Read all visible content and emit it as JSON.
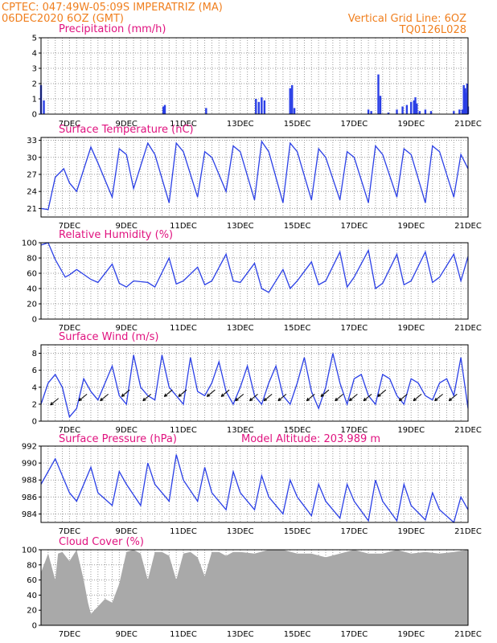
{
  "header": {
    "left_line1": "CPTEC:    047:49W-05:09S   IMPERATRIZ (MA)",
    "left_line2": "06DEC2020 6OZ (GMT)",
    "right_line1": "Vertical Grid Line: 6OZ",
    "right_line2": "TQ0126L028"
  },
  "colors": {
    "header": "#f07f1e",
    "title": "#e0127f",
    "series": "#2a3fe6",
    "cloud": "#a9a9a9"
  },
  "chart_data": [
    {
      "type": "bar",
      "title": "Precipitation (mm/h)",
      "ylim": [
        0,
        5
      ],
      "yticks": [
        "0",
        "1",
        "2",
        "3",
        "4",
        "5"
      ],
      "xticks": [
        "7DEC",
        "9DEC",
        "11DEC",
        "13DEC",
        "15DEC",
        "17DEC",
        "19DEC",
        "21DEC"
      ],
      "grid": true,
      "values": [
        [
          0.0,
          1.9
        ],
        [
          0.1,
          0.9
        ],
        [
          4.3,
          0.5
        ],
        [
          4.35,
          0.6
        ],
        [
          5.8,
          0.4
        ],
        [
          7.55,
          1.0
        ],
        [
          7.65,
          0.8
        ],
        [
          7.75,
          1.1
        ],
        [
          7.85,
          0.9
        ],
        [
          8.75,
          1.7
        ],
        [
          8.82,
          1.9
        ],
        [
          8.9,
          0.4
        ],
        [
          11.5,
          0.3
        ],
        [
          11.6,
          0.2
        ],
        [
          11.85,
          2.6
        ],
        [
          11.92,
          1.2
        ],
        [
          12.2,
          0.1
        ],
        [
          12.5,
          0.3
        ],
        [
          12.7,
          0.5
        ],
        [
          12.85,
          0.6
        ],
        [
          13.0,
          0.8
        ],
        [
          13.1,
          0.9
        ],
        [
          13.15,
          1.1
        ],
        [
          13.2,
          0.7
        ],
        [
          13.3,
          0.2
        ],
        [
          13.5,
          0.3
        ],
        [
          13.7,
          0.2
        ],
        [
          14.5,
          0.2
        ],
        [
          14.7,
          0.3
        ],
        [
          14.8,
          0.3
        ],
        [
          14.85,
          1.9
        ],
        [
          14.9,
          1.7
        ],
        [
          14.93,
          1.4
        ],
        [
          14.97,
          2.0
        ],
        [
          15.0,
          0.5
        ]
      ]
    },
    {
      "type": "line",
      "title": "Surface Temperature (nC)",
      "ylim": [
        19.5,
        33.5
      ],
      "yticks": [
        "21",
        "24",
        "27",
        "30",
        "33"
      ],
      "xticks": [
        "7DEC",
        "9DEC",
        "11DEC",
        "13DEC",
        "15DEC",
        "17DEC",
        "19DEC",
        "21DEC"
      ],
      "grid": true,
      "values": [
        [
          0.0,
          21.0
        ],
        [
          0.25,
          20.8
        ],
        [
          0.5,
          26.5
        ],
        [
          0.8,
          28.0
        ],
        [
          1.0,
          25.5
        ],
        [
          1.25,
          24.0
        ],
        [
          1.75,
          31.8
        ],
        [
          2.0,
          29.0
        ],
        [
          2.5,
          23.0
        ],
        [
          2.75,
          31.5
        ],
        [
          3.0,
          30.5
        ],
        [
          3.25,
          24.5
        ],
        [
          3.75,
          32.5
        ],
        [
          4.0,
          30.5
        ],
        [
          4.5,
          22.0
        ],
        [
          4.75,
          32.5
        ],
        [
          5.0,
          31.0
        ],
        [
          5.5,
          23.0
        ],
        [
          5.75,
          31.0
        ],
        [
          6.0,
          30.0
        ],
        [
          6.5,
          24.0
        ],
        [
          6.75,
          32.0
        ],
        [
          7.0,
          31.0
        ],
        [
          7.5,
          22.5
        ],
        [
          7.75,
          32.8
        ],
        [
          8.0,
          31.0
        ],
        [
          8.5,
          22.0
        ],
        [
          8.75,
          32.5
        ],
        [
          9.0,
          31.0
        ],
        [
          9.5,
          22.5
        ],
        [
          9.75,
          31.5
        ],
        [
          10.0,
          30.0
        ],
        [
          10.5,
          22.5
        ],
        [
          10.75,
          31.0
        ],
        [
          11.0,
          30.0
        ],
        [
          11.5,
          22.0
        ],
        [
          11.75,
          32.0
        ],
        [
          12.0,
          30.5
        ],
        [
          12.5,
          23.0
        ],
        [
          12.75,
          31.5
        ],
        [
          13.0,
          30.5
        ],
        [
          13.5,
          22.0
        ],
        [
          13.75,
          32.0
        ],
        [
          14.0,
          31.0
        ],
        [
          14.5,
          23.0
        ],
        [
          14.75,
          30.5
        ],
        [
          15.0,
          28.0
        ]
      ]
    },
    {
      "type": "line",
      "title": "Relative Humidity (%)",
      "ylim": [
        0,
        100
      ],
      "yticks": [
        "0",
        "20",
        "40",
        "60",
        "80",
        "100"
      ],
      "xticks": [
        "7DEC",
        "9DEC",
        "11DEC",
        "13DEC",
        "15DEC",
        "17DEC",
        "19DEC",
        "21DEC"
      ],
      "grid": true,
      "values": [
        [
          0.0,
          97
        ],
        [
          0.25,
          100
        ],
        [
          0.5,
          78
        ],
        [
          0.85,
          55
        ],
        [
          1.0,
          58
        ],
        [
          1.25,
          65
        ],
        [
          1.75,
          52
        ],
        [
          2.0,
          48
        ],
        [
          2.5,
          72
        ],
        [
          2.75,
          47
        ],
        [
          3.0,
          42
        ],
        [
          3.25,
          50
        ],
        [
          3.75,
          48
        ],
        [
          4.0,
          42
        ],
        [
          4.5,
          80
        ],
        [
          4.75,
          46
        ],
        [
          5.0,
          50
        ],
        [
          5.5,
          68
        ],
        [
          5.75,
          45
        ],
        [
          6.0,
          50
        ],
        [
          6.5,
          85
        ],
        [
          6.75,
          50
        ],
        [
          7.0,
          48
        ],
        [
          7.5,
          73
        ],
        [
          7.75,
          40
        ],
        [
          8.0,
          35
        ],
        [
          8.5,
          65
        ],
        [
          8.75,
          40
        ],
        [
          9.0,
          50
        ],
        [
          9.5,
          75
        ],
        [
          9.75,
          45
        ],
        [
          10.0,
          50
        ],
        [
          10.5,
          88
        ],
        [
          10.75,
          42
        ],
        [
          11.0,
          55
        ],
        [
          11.5,
          90
        ],
        [
          11.75,
          40
        ],
        [
          12.0,
          47
        ],
        [
          12.5,
          85
        ],
        [
          12.75,
          45
        ],
        [
          13.0,
          50
        ],
        [
          13.5,
          88
        ],
        [
          13.75,
          48
        ],
        [
          14.0,
          55
        ],
        [
          14.5,
          85
        ],
        [
          14.75,
          50
        ],
        [
          15.0,
          82
        ]
      ]
    },
    {
      "type": "line",
      "title": "Surface Wind (m/s)",
      "ylim": [
        0,
        9
      ],
      "yticks": [
        "0",
        "2",
        "4",
        "6",
        "8"
      ],
      "xticks": [
        "7DEC",
        "9DEC",
        "11DEC",
        "13DEC",
        "15DEC",
        "17DEC",
        "19DEC",
        "21DEC"
      ],
      "grid": true,
      "values": [
        [
          0.0,
          2.0
        ],
        [
          0.25,
          4.5
        ],
        [
          0.5,
          5.5
        ],
        [
          0.75,
          4.0
        ],
        [
          1.0,
          0.5
        ],
        [
          1.25,
          1.5
        ],
        [
          1.5,
          5.0
        ],
        [
          1.75,
          3.5
        ],
        [
          2.0,
          2.5
        ],
        [
          2.5,
          6.5
        ],
        [
          2.75,
          3.0
        ],
        [
          3.0,
          2.0
        ],
        [
          3.25,
          7.8
        ],
        [
          3.5,
          4.0
        ],
        [
          3.75,
          3.0
        ],
        [
          4.0,
          2.5
        ],
        [
          4.25,
          7.8
        ],
        [
          4.5,
          4.0
        ],
        [
          4.75,
          3.0
        ],
        [
          5.0,
          2.0
        ],
        [
          5.25,
          7.5
        ],
        [
          5.5,
          3.5
        ],
        [
          5.75,
          3.0
        ],
        [
          6.0,
          4.5
        ],
        [
          6.25,
          7.0
        ],
        [
          6.5,
          3.5
        ],
        [
          6.75,
          2.0
        ],
        [
          7.0,
          4.0
        ],
        [
          7.25,
          6.5
        ],
        [
          7.5,
          3.0
        ],
        [
          7.75,
          2.0
        ],
        [
          8.0,
          4.5
        ],
        [
          8.25,
          6.5
        ],
        [
          8.5,
          3.0
        ],
        [
          8.75,
          2.0
        ],
        [
          9.0,
          4.5
        ],
        [
          9.25,
          7.5
        ],
        [
          9.5,
          3.5
        ],
        [
          9.75,
          1.5
        ],
        [
          10.0,
          4.0
        ],
        [
          10.25,
          8.0
        ],
        [
          10.5,
          4.5
        ],
        [
          10.75,
          2.0
        ],
        [
          11.0,
          5.0
        ],
        [
          11.25,
          5.5
        ],
        [
          11.5,
          3.0
        ],
        [
          11.75,
          2.0
        ],
        [
          12.0,
          5.5
        ],
        [
          12.25,
          5.0
        ],
        [
          12.5,
          3.0
        ],
        [
          12.75,
          2.0
        ],
        [
          13.0,
          5.0
        ],
        [
          13.25,
          4.5
        ],
        [
          13.5,
          3.0
        ],
        [
          13.75,
          2.5
        ],
        [
          14.0,
          4.5
        ],
        [
          14.25,
          5.0
        ],
        [
          14.5,
          3.0
        ],
        [
          14.75,
          7.5
        ],
        [
          15.0,
          1.5
        ]
      ],
      "wind_arrows": [
        [
          0.5,
          2.5,
          2.0
        ],
        [
          1.5,
          3.0,
          1.5
        ],
        [
          2.25,
          3.0,
          2.5
        ],
        [
          3.0,
          3.5,
          2.5
        ],
        [
          3.75,
          3.0,
          2.0
        ],
        [
          4.5,
          3.5,
          2.5
        ],
        [
          5.0,
          3.5,
          1.5
        ],
        [
          6.0,
          3.5,
          2.5
        ],
        [
          6.5,
          3.5,
          2.0
        ],
        [
          7.0,
          3.0,
          2.5
        ],
        [
          7.5,
          3.0,
          1.5
        ],
        [
          8.0,
          3.0,
          2.0
        ],
        [
          8.5,
          3.0,
          2.5
        ],
        [
          9.5,
          3.0,
          2.0
        ],
        [
          10.0,
          3.5,
          2.0
        ],
        [
          10.5,
          3.0,
          2.5
        ],
        [
          11.0,
          3.0,
          2.0
        ],
        [
          11.5,
          3.0,
          2.5
        ],
        [
          12.0,
          3.5,
          1.5
        ],
        [
          12.75,
          3.0,
          2.5
        ],
        [
          13.25,
          3.0,
          2.0
        ],
        [
          14.0,
          3.0,
          2.5
        ],
        [
          14.5,
          3.0,
          2.0
        ]
      ]
    },
    {
      "type": "line",
      "title": "Surface Pressure (hPa)",
      "subtitle": "Model Altitude: 203.989 m",
      "ylim": [
        983,
        992
      ],
      "yticks": [
        "984",
        "986",
        "988",
        "990",
        "992"
      ],
      "xticks": [
        "7DEC",
        "9DEC",
        "11DEC",
        "13DEC",
        "15DEC",
        "17DEC",
        "19DEC",
        "21DEC"
      ],
      "grid": true,
      "values": [
        [
          0.0,
          987.5
        ],
        [
          0.5,
          990.5
        ],
        [
          1.0,
          986.5
        ],
        [
          1.25,
          985.5
        ],
        [
          1.75,
          989.5
        ],
        [
          2.0,
          986.5
        ],
        [
          2.5,
          985.0
        ],
        [
          2.75,
          989.0
        ],
        [
          3.0,
          987.5
        ],
        [
          3.5,
          985.0
        ],
        [
          3.75,
          990.0
        ],
        [
          4.0,
          987.5
        ],
        [
          4.5,
          985.5
        ],
        [
          4.75,
          991.0
        ],
        [
          5.0,
          988.0
        ],
        [
          5.5,
          985.5
        ],
        [
          5.75,
          989.5
        ],
        [
          6.0,
          986.5
        ],
        [
          6.5,
          984.5
        ],
        [
          6.75,
          989.0
        ],
        [
          7.0,
          986.5
        ],
        [
          7.5,
          984.5
        ],
        [
          7.75,
          988.5
        ],
        [
          8.0,
          986.0
        ],
        [
          8.5,
          984.0
        ],
        [
          8.75,
          988.0
        ],
        [
          9.0,
          986.0
        ],
        [
          9.5,
          983.8
        ],
        [
          9.75,
          987.5
        ],
        [
          10.0,
          985.5
        ],
        [
          10.5,
          983.5
        ],
        [
          10.75,
          987.5
        ],
        [
          11.0,
          985.5
        ],
        [
          11.5,
          983.2
        ],
        [
          11.75,
          988.0
        ],
        [
          12.0,
          985.5
        ],
        [
          12.5,
          983.2
        ],
        [
          12.75,
          987.5
        ],
        [
          13.0,
          985.0
        ],
        [
          13.5,
          983.3
        ],
        [
          13.75,
          986.5
        ],
        [
          14.0,
          984.5
        ],
        [
          14.5,
          983.0
        ],
        [
          14.75,
          986.0
        ],
        [
          15.0,
          984.5
        ]
      ]
    },
    {
      "type": "area",
      "title": "Cloud Cover (%)",
      "ylim": [
        0,
        100
      ],
      "yticks": [
        "0",
        "20",
        "40",
        "60",
        "80",
        "100"
      ],
      "xticks": [
        "7DEC",
        "9DEC",
        "11DEC",
        "13DEC",
        "15DEC",
        "17DEC",
        "19DEC",
        "21DEC"
      ],
      "grid": true,
      "values": [
        [
          0.0,
          70
        ],
        [
          0.25,
          95
        ],
        [
          0.5,
          60
        ],
        [
          0.6,
          95
        ],
        [
          0.75,
          97
        ],
        [
          1.0,
          85
        ],
        [
          1.25,
          100
        ],
        [
          1.5,
          60
        ],
        [
          1.65,
          30
        ],
        [
          1.75,
          15
        ],
        [
          2.0,
          25
        ],
        [
          2.25,
          35
        ],
        [
          2.5,
          30
        ],
        [
          2.75,
          55
        ],
        [
          3.0,
          97
        ],
        [
          3.25,
          100
        ],
        [
          3.5,
          95
        ],
        [
          3.75,
          60
        ],
        [
          4.0,
          97
        ],
        [
          4.25,
          97
        ],
        [
          4.5,
          92
        ],
        [
          4.75,
          60
        ],
        [
          5.0,
          95
        ],
        [
          5.25,
          97
        ],
        [
          5.5,
          90
        ],
        [
          5.75,
          65
        ],
        [
          6.0,
          97
        ],
        [
          6.25,
          97
        ],
        [
          6.5,
          92
        ],
        [
          6.75,
          97
        ],
        [
          7.0,
          97
        ],
        [
          7.5,
          95
        ],
        [
          8.0,
          100
        ],
        [
          8.5,
          100
        ],
        [
          9.0,
          95
        ],
        [
          9.5,
          95
        ],
        [
          10.0,
          90
        ],
        [
          10.5,
          95
        ],
        [
          11.0,
          100
        ],
        [
          11.5,
          95
        ],
        [
          12.0,
          95
        ],
        [
          12.5,
          100
        ],
        [
          13.0,
          95
        ],
        [
          13.5,
          97
        ],
        [
          14.0,
          95
        ],
        [
          14.5,
          97
        ],
        [
          15.0,
          100
        ]
      ]
    }
  ]
}
